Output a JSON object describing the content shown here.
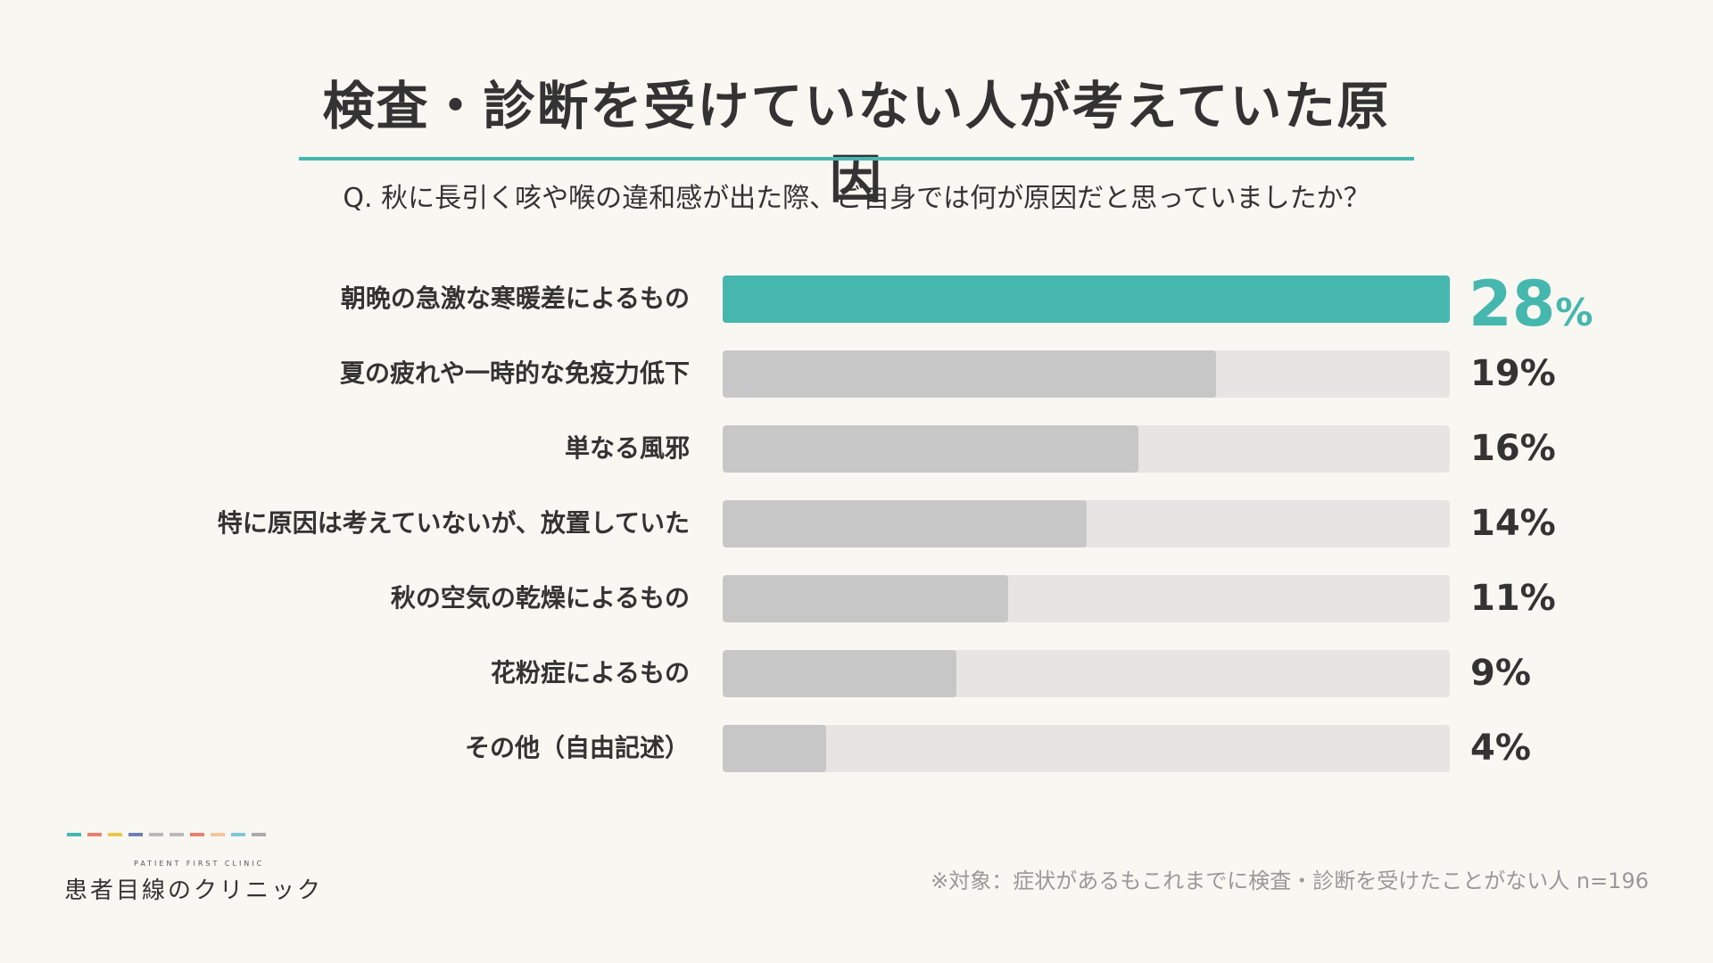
{
  "header": {
    "title": "検査・診断を受けていない人が考えていた原因",
    "question": "Q. 秋に長引く咳や喉の違和感が出た際、ご自身では何が原因だと思っていましたか？"
  },
  "chart_data": {
    "type": "bar",
    "orientation": "horizontal",
    "categories": [
      "朝晩の急激な寒暖差によるもの",
      "夏の疲れや一時的な免疫力低下",
      "単なる風邪",
      "特に原因は考えていないが、放置していた",
      "秋の空気の乾燥によるもの",
      "花粉症によるもの",
      "その他（自由記述）"
    ],
    "values": [
      28,
      19,
      16,
      14,
      11,
      9,
      4
    ],
    "value_labels": [
      "28",
      "19",
      "16",
      "14",
      "11",
      "9",
      "4"
    ],
    "unit": "%",
    "highlight_index": 0,
    "colors": {
      "highlight": "#45b7ae",
      "bar": "#c7c7c7",
      "track": "#e6e5e3"
    }
  },
  "footnote": "※対象：症状があるもこれまでに検査・診断を受けたことがない人 n=196",
  "logo": {
    "en": "PATIENT FIRST CLINIC",
    "jp": "患者目線のクリニック",
    "dash_colors": [
      "#45b7ae",
      "#e8806f",
      "#e8c84a",
      "#6f7fb5",
      "#b9b9b9",
      "#b9b9b9",
      "#e8806f",
      "#f2c79a",
      "#7fc7d9",
      "#a9a9a9"
    ]
  }
}
